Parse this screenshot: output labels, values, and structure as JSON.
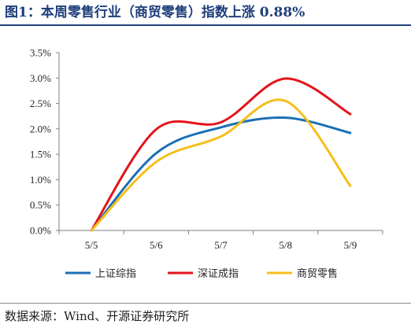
{
  "header": {
    "title": "图1：本周零售行业（商贸零售）指数上涨 0.88%"
  },
  "footer": {
    "source": "数据来源：Wind、开源证券研究所"
  },
  "colors": {
    "title": "#1f3e7a",
    "axis": "#7f7f7f"
  },
  "chart_data": {
    "type": "line",
    "title": "",
    "xlabel": "",
    "ylabel": "",
    "categories": [
      "5/5",
      "5/6",
      "5/7",
      "5/8",
      "5/9"
    ],
    "y_tick_labels": [
      "0.0%",
      "0.5%",
      "1.0%",
      "1.5%",
      "2.0%",
      "2.5%",
      "3.0%",
      "3.5%"
    ],
    "y_ticks": [
      0,
      0.5,
      1.0,
      1.5,
      2.0,
      2.5,
      3.0,
      3.5
    ],
    "ylim": [
      0,
      3.5
    ],
    "grid": false,
    "legend_position": "bottom",
    "smooth": true,
    "series": [
      {
        "name": "上证综指",
        "color": "#1b6fb5",
        "values": [
          0.0,
          1.52,
          2.03,
          2.22,
          1.92
        ]
      },
      {
        "name": "深证成指",
        "color": "#e3141b",
        "values": [
          0.0,
          1.99,
          2.13,
          2.99,
          2.29
        ]
      },
      {
        "name": "商贸零售",
        "color": "#f5bf1a",
        "values": [
          0.0,
          1.35,
          1.85,
          2.55,
          0.88
        ]
      }
    ]
  }
}
